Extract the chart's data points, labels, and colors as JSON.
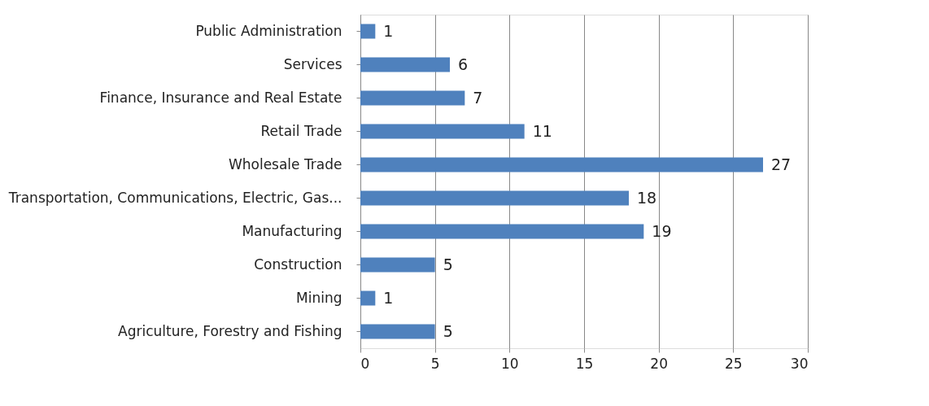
{
  "chart_data": {
    "type": "bar",
    "orientation": "horizontal",
    "categories": [
      "Public Administration",
      "Services",
      "Finance, Insurance and Real Estate",
      "Retail Trade",
      "Wholesale Trade",
      "Transportation, Communications, Electric, Gas...",
      "Manufacturing",
      "Construction",
      "Mining",
      "Agriculture, Forestry and Fishing"
    ],
    "values": [
      1,
      6,
      7,
      11,
      27,
      18,
      19,
      5,
      1,
      5
    ],
    "color": "#4f81bd",
    "xlim": [
      0,
      30
    ],
    "xticks": [
      0,
      5,
      10,
      15,
      20,
      25,
      30
    ],
    "grid": "x",
    "data_labels": true
  }
}
